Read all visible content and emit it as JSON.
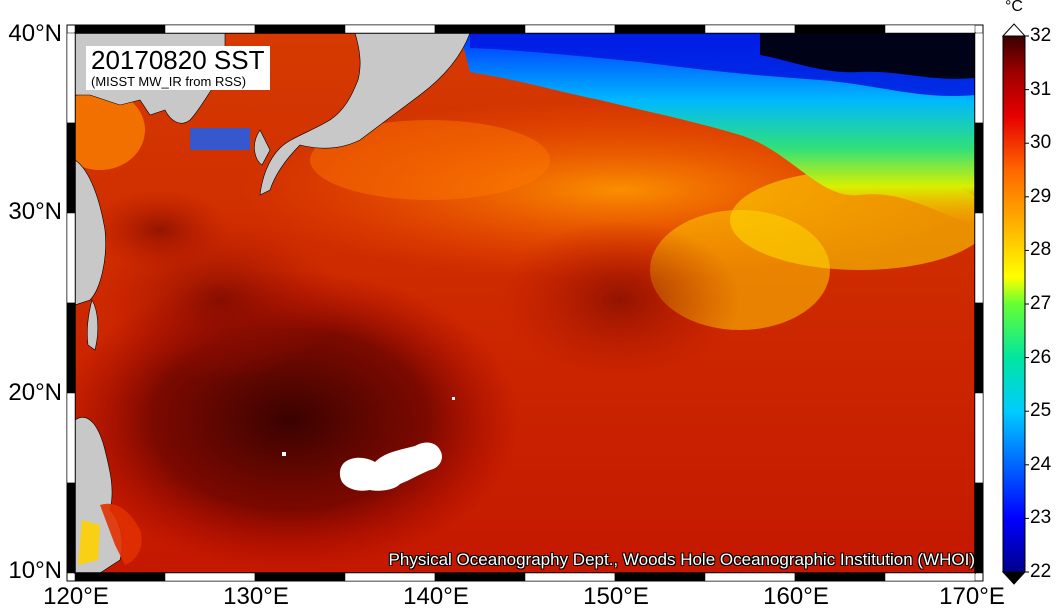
{
  "map": {
    "title": "20170820 SST",
    "subtitle": "(MISST MW_IR from RSS)",
    "credit": "Physical Oceanography Dept., Woods Hole Oceanographic Institution (WHOI)",
    "lat_labels": [
      "40°N",
      "30°N",
      "20°N",
      "10°N"
    ],
    "lon_labels": [
      "120°E",
      "130°E",
      "140°E",
      "150°E",
      "160°E",
      "170°E"
    ],
    "land_color": "#c8c8c8",
    "nodata_color": "#ffffff"
  },
  "colorbar": {
    "unit": "°C",
    "min": 22,
    "max": 32,
    "ticks": [
      "32",
      "31",
      "30",
      "29",
      "28",
      "27",
      "26",
      "25",
      "24",
      "23",
      "22"
    ],
    "colors": [
      "#00008b",
      "#0000ff",
      "#0066ff",
      "#00ccff",
      "#00e6a0",
      "#66ff33",
      "#ffff00",
      "#ffb000",
      "#ff6600",
      "#e60000",
      "#a00000",
      "#3a0000"
    ]
  }
}
